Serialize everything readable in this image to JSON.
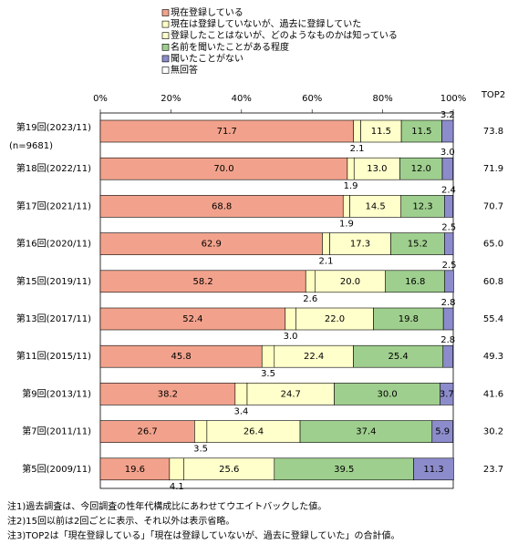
{
  "chart_data": {
    "type": "stacked-bar-horizontal",
    "categories": [
      "第19回(2023/11)",
      "第18回(2022/11)",
      "第17回(2021/11)",
      "第16回(2020/11)",
      "第15回(2019/11)",
      "第13回(2017/11)",
      "第11回(2015/11)",
      "第9回(2013/11)",
      "第7回(2011/11)",
      "第5回(2009/11)"
    ],
    "sample_note": "(n=9681)",
    "xlim": [
      0,
      100
    ],
    "xticks": [
      {
        "value": 0,
        "label": "0%"
      },
      {
        "value": 20,
        "label": "20%"
      },
      {
        "value": 40,
        "label": "40%"
      },
      {
        "value": 60,
        "label": "60%"
      },
      {
        "value": 80,
        "label": "80%"
      },
      {
        "value": 100,
        "label": "100%"
      }
    ],
    "series": [
      {
        "name": "現在登録している",
        "color": "#f2a28c",
        "values": [
          71.7,
          70,
          68.8,
          62.9,
          58.2,
          52.4,
          45.8,
          38.2,
          26.7,
          19.6
        ],
        "value_labels": [
          "71.7",
          "70.0",
          "68.8",
          "62.9",
          "58.2",
          "52.4",
          "45.8",
          "38.2",
          "26.7",
          "19.6"
        ]
      },
      {
        "name": "現在は登録していないが、過去に登録していた",
        "color": "#ffffc4",
        "values": [
          2.1,
          1.9,
          1.9,
          2.1,
          2.6,
          3,
          3.5,
          3.4,
          3.5,
          4.1
        ],
        "value_labels": [
          "2.1",
          "1.9",
          "1.9",
          "2.1",
          "2.6",
          "3.0",
          "3.5",
          "3.4",
          "3.5",
          "4.1"
        ]
      },
      {
        "name": "登録したことはないが、どのようなものかは知っている",
        "color": "#ffffcc",
        "values": [
          11.5,
          13,
          14.5,
          17.3,
          20,
          22,
          22.4,
          24.7,
          26.4,
          25.6
        ],
        "value_labels": [
          "11.5",
          "13.0",
          "14.5",
          "17.3",
          "20.0",
          "22.0",
          "22.4",
          "24.7",
          "26.4",
          "25.6"
        ]
      },
      {
        "name": "名前を聞いたことがある程度",
        "color": "#9fcf8e",
        "values": [
          11.5,
          12,
          12.3,
          15.2,
          16.8,
          19.8,
          25.4,
          30,
          37.4,
          39.5
        ],
        "value_labels": [
          "11.5",
          "12.0",
          "12.3",
          "15.2",
          "16.8",
          "19.8",
          "25.4",
          "30.0",
          "37.4",
          "39.5"
        ]
      },
      {
        "name": "聞いたことがない",
        "color": "#8c8ccc",
        "values": [
          3.2,
          3,
          2.4,
          2.5,
          2.5,
          2.8,
          2.8,
          3.7,
          5.9,
          11.3
        ],
        "value_labels": [
          "3.2",
          "3.0",
          "2.4",
          "2.5",
          "2.5",
          "2.8",
          "2.8",
          "3.7",
          "5.9",
          "11.3"
        ]
      },
      {
        "name": "無回答",
        "color": "#ffffff",
        "values": [
          null,
          null,
          null,
          null,
          null,
          null,
          null,
          null,
          null,
          null
        ]
      }
    ],
    "top2": {
      "label": "TOP2",
      "values": [
        73.8,
        71.9,
        70.7,
        65,
        60.8,
        55.4,
        49.3,
        41.6,
        30.2,
        23.7
      ],
      "value_labels": [
        "73.8",
        "71.9",
        "70.7",
        "65.0",
        "60.8",
        "55.4",
        "49.3",
        "41.6",
        "30.2",
        "23.7"
      ]
    },
    "notes": [
      "注1)過去調査は、今回調査の性年代構成比にあわせてウエイトバックした値。",
      "注2)15回以前は2回ごとに表示、それ以外は表示省略。",
      "注3)TOP2は「現在登録している」「現在は登録していないが、過去に登録していた」の合計値。"
    ]
  }
}
